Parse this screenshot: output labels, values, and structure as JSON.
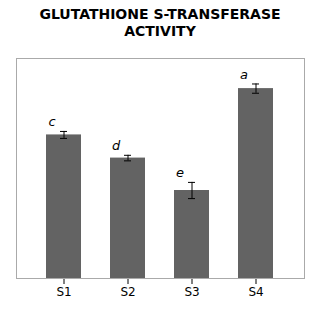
{
  "chart_data": {
    "type": "bar",
    "title": "GLUTATHIONE S-TRANSFERASE\nACTIVITY",
    "categories": [
      "S1",
      "S2",
      "S3",
      "S4"
    ],
    "values": [
      62,
      52,
      38,
      82
    ],
    "errors": [
      1.5,
      1.2,
      3.5,
      2.0
    ],
    "letters": [
      "c",
      "d",
      "e",
      "a"
    ],
    "color": "#636363",
    "ylim": [
      0,
      95
    ],
    "yticks": [],
    "tick_labels": "x",
    "grid": false
  }
}
